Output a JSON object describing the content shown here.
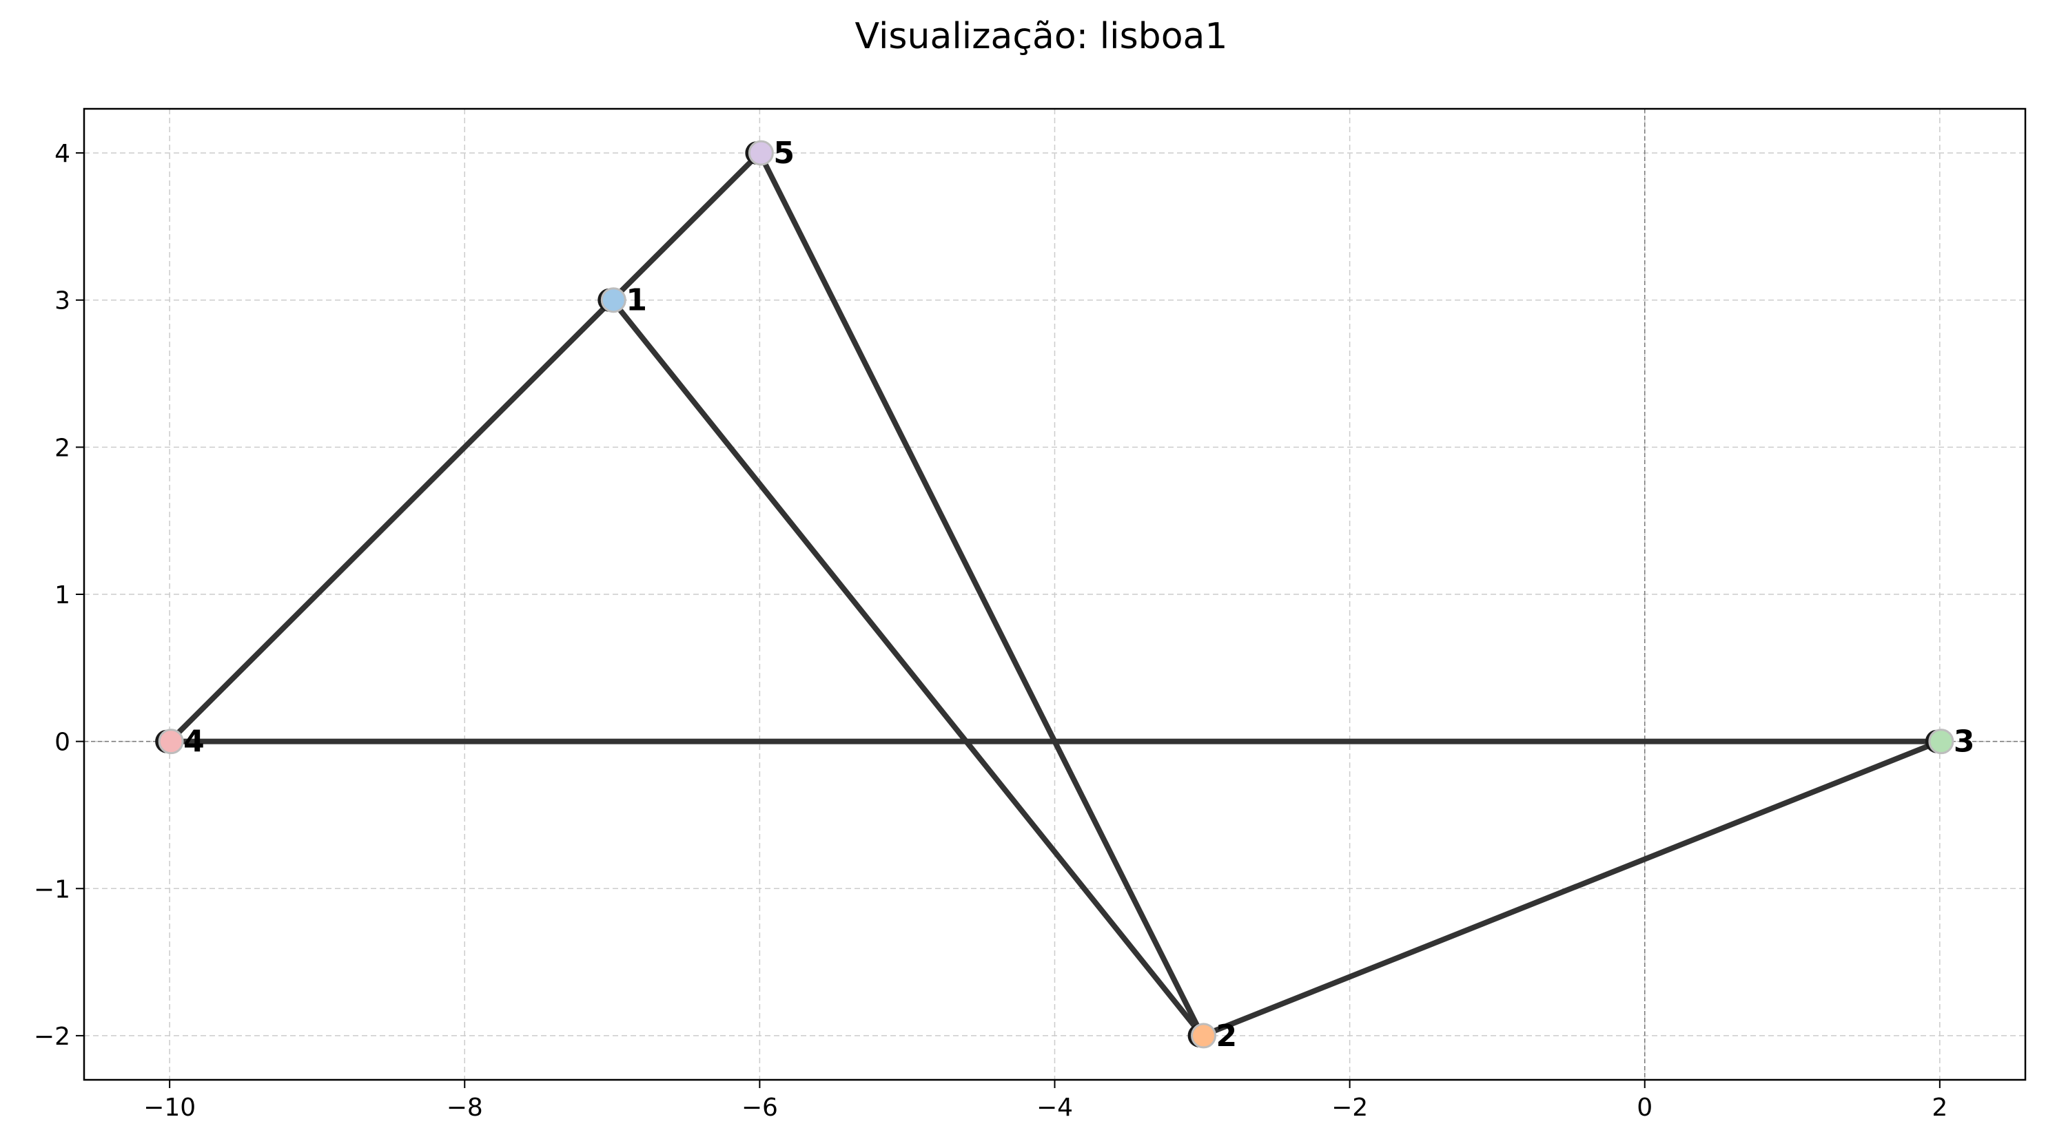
{
  "chart_data": {
    "type": "scatter",
    "title": "Visualização: lisboa1",
    "xlabel": "",
    "ylabel": "",
    "xlim": [
      -10.58,
      2.58
    ],
    "ylim": [
      -2.3,
      4.3
    ],
    "xticks": [
      -10,
      -8,
      -6,
      -4,
      -2,
      0,
      2
    ],
    "yticks": [
      -2,
      -1,
      0,
      1,
      2,
      3,
      4
    ],
    "xtick_labels": [
      "−10",
      "−8",
      "−6",
      "−4",
      "−2",
      "0",
      "2"
    ],
    "ytick_labels": [
      "−2",
      "−1",
      "0",
      "1",
      "2",
      "3",
      "4"
    ],
    "grid": true,
    "reference_lines": {
      "x": 0,
      "y": 0
    },
    "nodes": [
      {
        "id": "1",
        "x": -7,
        "y": 3,
        "color": "#9fc8e8"
      },
      {
        "id": "2",
        "x": -3,
        "y": -2,
        "color": "#ffbb88"
      },
      {
        "id": "3",
        "x": 2,
        "y": 0,
        "color": "#b3dfb3"
      },
      {
        "id": "4",
        "x": -10,
        "y": 0,
        "color": "#f4b6b8"
      },
      {
        "id": "5",
        "x": -6,
        "y": 4,
        "color": "#d7c6e6"
      }
    ],
    "edges": [
      [
        "4",
        "1"
      ],
      [
        "1",
        "5"
      ],
      [
        "5",
        "2"
      ],
      [
        "1",
        "2"
      ],
      [
        "2",
        "3"
      ],
      [
        "4",
        "3"
      ]
    ]
  }
}
